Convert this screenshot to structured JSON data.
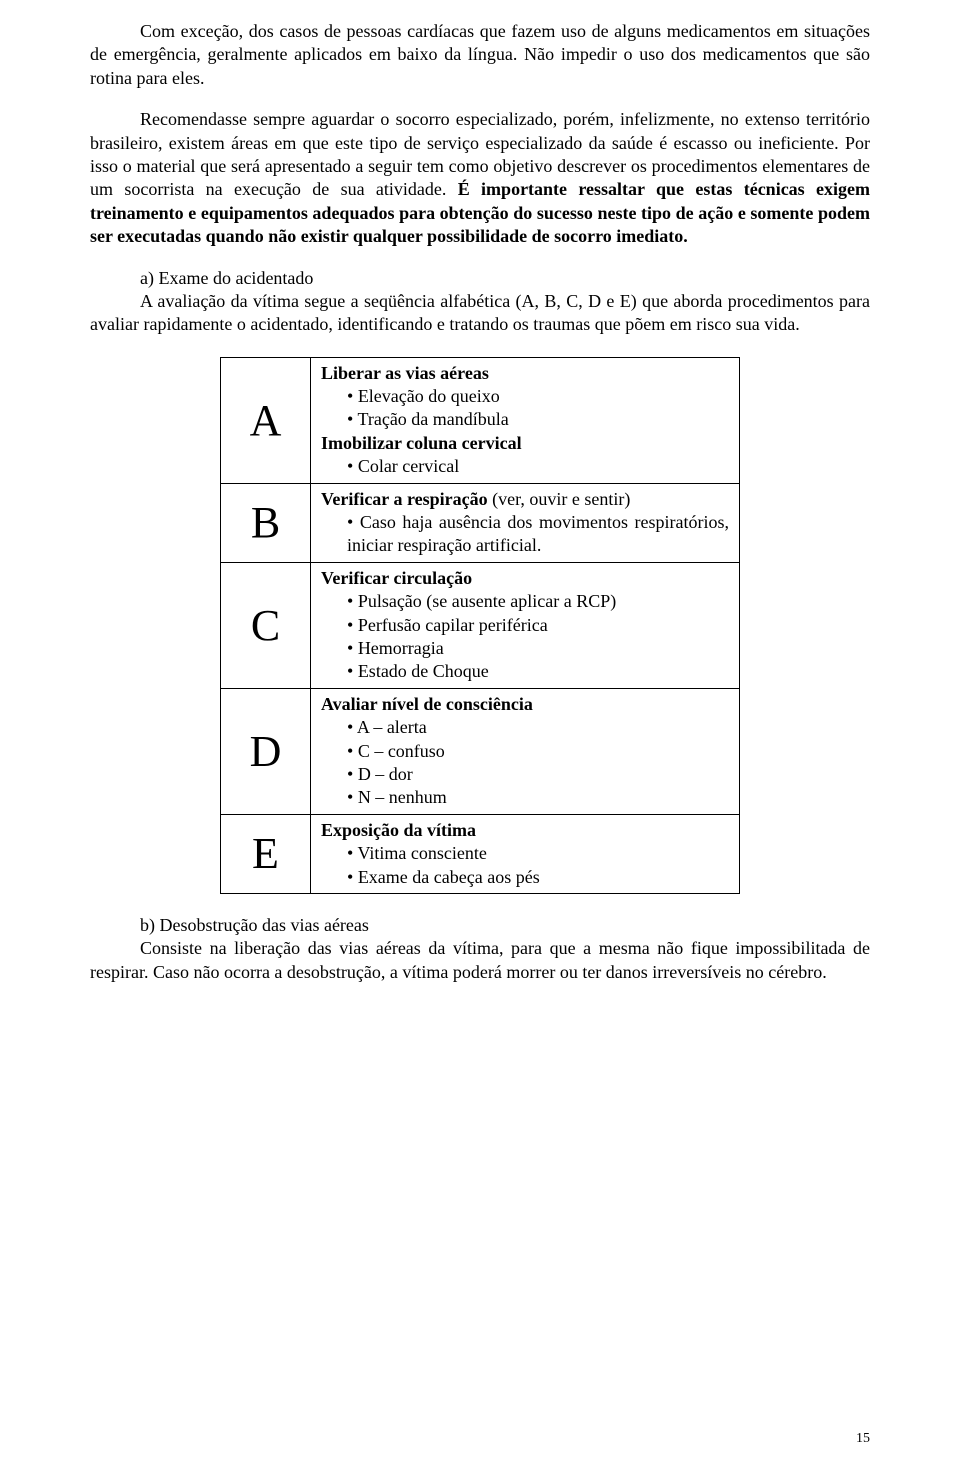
{
  "paragraphs": {
    "p1": "Com exceção, dos casos de pessoas cardíacas que fazem uso de alguns medicamentos em situações de emergência, geralmente aplicados em baixo da língua. Não impedir o uso dos medicamentos que são rotina para eles.",
    "p2_part1": "Recomendasse sempre aguardar o socorro especializado, porém, infelizmente, no extenso território brasileiro, existem áreas em que este tipo de serviço especializado da saúde é escasso ou ineficiente. Por isso o material que será apresentado a seguir tem como objetivo descrever os procedimentos elementares de um socorrista na execução de sua atividade. ",
    "p2_bold": "É importante ressaltar que estas técnicas exigem treinamento e equipamentos adequados para obtenção do sucesso neste tipo de ação e somente podem ser executadas quando não existir qualquer possibilidade de socorro imediato."
  },
  "section_a": {
    "title": "a) Exame do acidentado",
    "body": "A avaliação da vítima segue a seqüência alfabética (A, B, C, D e E) que aborda procedimentos para avaliar rapidamente o acidentado, identificando e tratando os traumas que põem em risco sua vida."
  },
  "table": {
    "A": {
      "letter": "A",
      "h1": "Liberar as vias aéreas",
      "b1": "Elevação do queixo",
      "b2": "Tração da mandíbula",
      "h2": "Imobilizar coluna cervical",
      "b3": "Colar cervical"
    },
    "B": {
      "letter": "B",
      "h1_pre": "Verificar a respiração",
      "h1_post": " (ver, ouvir e sentir)",
      "b1": "Caso haja ausência dos movimentos respiratórios, iniciar respiração artificial."
    },
    "C": {
      "letter": "C",
      "h1": "Verificar circulação",
      "b1": "Pulsação (se ausente aplicar a RCP)",
      "b2": "Perfusão capilar periférica",
      "b3": "Hemorragia",
      "b4": "Estado de Choque"
    },
    "D": {
      "letter": "D",
      "h1": "Avaliar nível de consciência",
      "b1": "A – alerta",
      "b2": "C – confuso",
      "b3": "D – dor",
      "b4": "N – nenhum"
    },
    "E": {
      "letter": "E",
      "h1": "Exposição da vítima",
      "b1": "Vitima consciente",
      "b2": "Exame da cabeça aos pés"
    }
  },
  "section_b": {
    "title": "b) Desobstrução das vias aéreas",
    "body": "Consiste na liberação das vias aéreas da vítima, para que a mesma não fique impossibilitada de respirar. Caso não ocorra a desobstrução, a vítima poderá morrer ou ter danos irreversíveis no cérebro."
  },
  "page_number": "15"
}
